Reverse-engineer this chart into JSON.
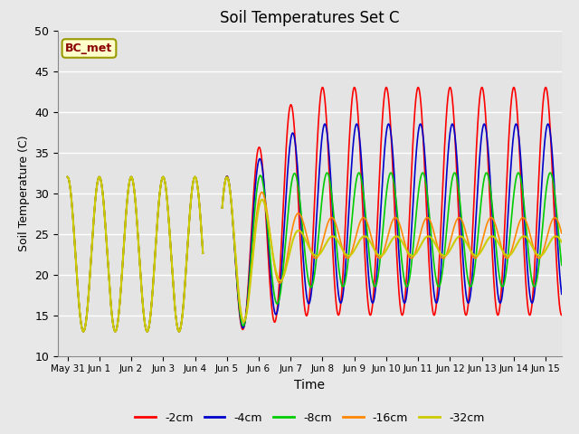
{
  "title": "Soil Temperatures Set C",
  "xlabel": "Time",
  "ylabel": "Soil Temperature (C)",
  "ylim": [
    10,
    50
  ],
  "xlim_start": -0.3,
  "xlim_end": 15.5,
  "legend_label": "BC_met",
  "series_labels": [
    "-2cm",
    "-4cm",
    "-8cm",
    "-16cm",
    "-32cm"
  ],
  "series_colors": [
    "#ff0000",
    "#0000cc",
    "#00cc00",
    "#ff8800",
    "#cccc00"
  ],
  "series_widths": [
    1.2,
    1.2,
    1.2,
    1.2,
    1.5
  ],
  "fig_bg_color": "#e8e8e8",
  "plot_bg_color": "#e4e4e4",
  "grid_color": "#ffffff",
  "xtick_labels": [
    "May 31",
    "Jun 1",
    "Jun 2",
    "Jun 3",
    "Jun 4",
    "Jun 5",
    "Jun 6",
    "Jun 7",
    "Jun 8",
    "Jun 9",
    "Jun 10",
    "Jun 11",
    "Jun 12",
    "Jun 13",
    "Jun 14",
    "Jun 15"
  ],
  "xtick_positions": [
    0,
    1,
    2,
    3,
    4,
    5,
    6,
    7,
    8,
    9,
    10,
    11,
    12,
    13,
    14,
    15
  ],
  "ytick_positions": [
    10,
    15,
    20,
    25,
    30,
    35,
    40,
    45,
    50
  ]
}
